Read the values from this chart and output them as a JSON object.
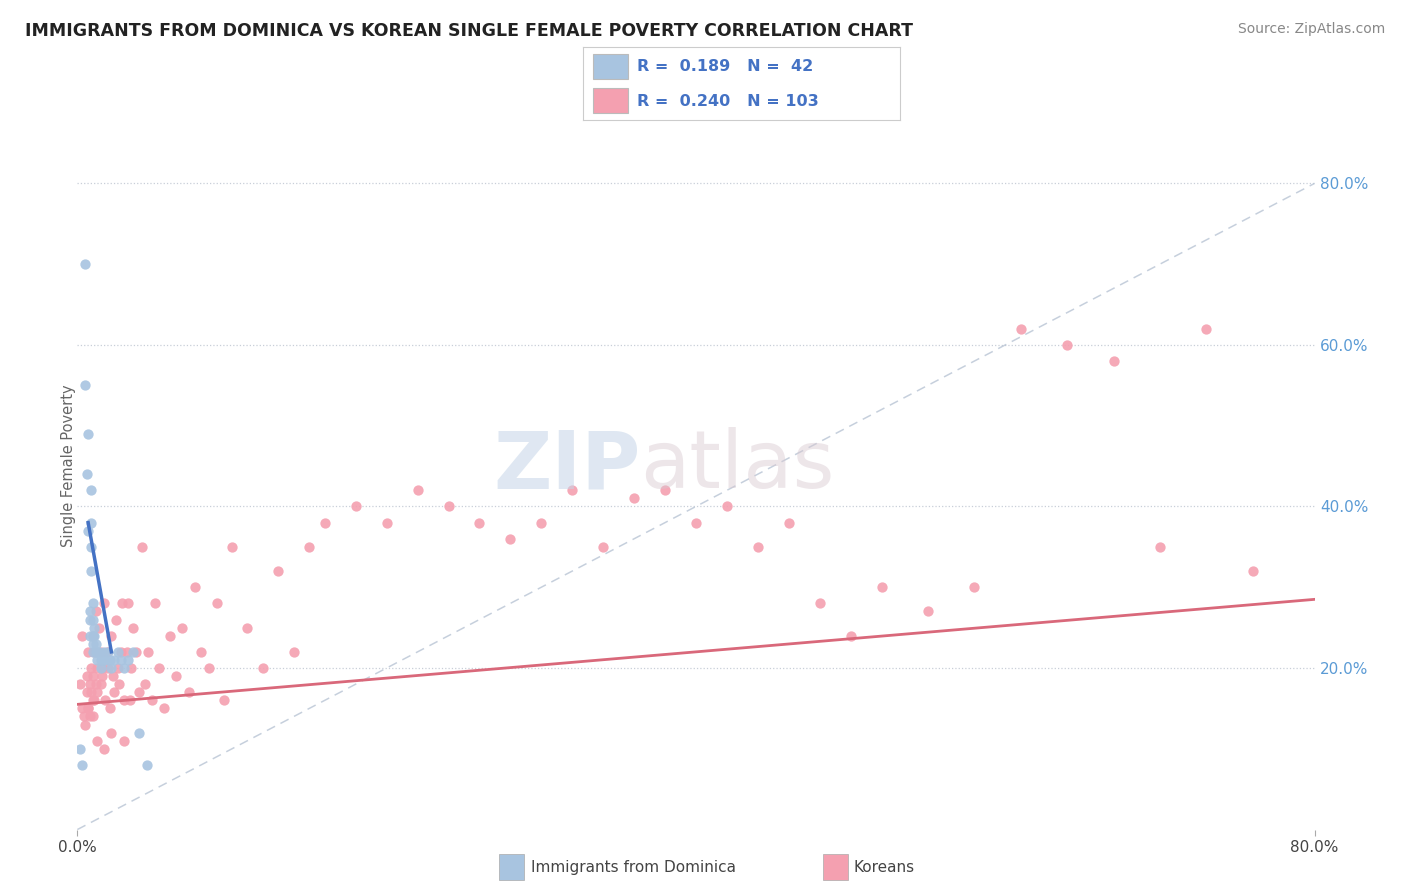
{
  "title": "IMMIGRANTS FROM DOMINICA VS KOREAN SINGLE FEMALE POVERTY CORRELATION CHART",
  "source": "Source: ZipAtlas.com",
  "ylabel": "Single Female Poverty",
  "dominica_color": "#a8c4e0",
  "korean_color": "#f4a0b0",
  "dominica_line_color": "#4472c4",
  "korean_line_color": "#d9687a",
  "ref_line_color": "#b8c4d4",
  "background_color": "#ffffff",
  "watermark_zip": "ZIP",
  "watermark_atlas": "atlas",
  "xlim": [
    0.0,
    0.8
  ],
  "ylim": [
    0.0,
    0.9
  ],
  "right_yticks": [
    0.2,
    0.4,
    0.6,
    0.8
  ],
  "right_yticklabels": [
    "20.0%",
    "40.0%",
    "60.0%",
    "80.0%"
  ],
  "xtick_labels": [
    "0.0%",
    "80.0%"
  ],
  "xtick_vals": [
    0.0,
    0.8
  ],
  "dom_x": [
    0.002,
    0.003,
    0.005,
    0.005,
    0.006,
    0.007,
    0.007,
    0.008,
    0.008,
    0.008,
    0.009,
    0.009,
    0.009,
    0.009,
    0.01,
    0.01,
    0.01,
    0.01,
    0.01,
    0.011,
    0.011,
    0.012,
    0.012,
    0.013,
    0.013,
    0.014,
    0.015,
    0.015,
    0.016,
    0.017,
    0.018,
    0.02,
    0.021,
    0.022,
    0.024,
    0.026,
    0.028,
    0.03,
    0.033,
    0.036,
    0.04,
    0.045
  ],
  "dom_y": [
    0.1,
    0.08,
    0.7,
    0.55,
    0.44,
    0.49,
    0.37,
    0.26,
    0.24,
    0.27,
    0.42,
    0.38,
    0.35,
    0.32,
    0.28,
    0.26,
    0.24,
    0.23,
    0.22,
    0.25,
    0.24,
    0.23,
    0.22,
    0.22,
    0.21,
    0.22,
    0.2,
    0.21,
    0.21,
    0.22,
    0.21,
    0.22,
    0.21,
    0.2,
    0.21,
    0.22,
    0.21,
    0.2,
    0.21,
    0.22,
    0.12,
    0.08
  ],
  "kor_x": [
    0.002,
    0.003,
    0.004,
    0.005,
    0.006,
    0.006,
    0.007,
    0.007,
    0.008,
    0.008,
    0.009,
    0.009,
    0.01,
    0.01,
    0.01,
    0.011,
    0.011,
    0.012,
    0.012,
    0.013,
    0.013,
    0.014,
    0.015,
    0.015,
    0.016,
    0.016,
    0.017,
    0.018,
    0.019,
    0.02,
    0.021,
    0.022,
    0.023,
    0.024,
    0.025,
    0.026,
    0.027,
    0.028,
    0.029,
    0.03,
    0.032,
    0.033,
    0.034,
    0.035,
    0.036,
    0.038,
    0.04,
    0.042,
    0.044,
    0.046,
    0.048,
    0.05,
    0.053,
    0.056,
    0.06,
    0.064,
    0.068,
    0.072,
    0.076,
    0.08,
    0.085,
    0.09,
    0.095,
    0.1,
    0.11,
    0.12,
    0.13,
    0.14,
    0.15,
    0.16,
    0.18,
    0.2,
    0.22,
    0.24,
    0.26,
    0.28,
    0.3,
    0.32,
    0.34,
    0.36,
    0.38,
    0.4,
    0.42,
    0.44,
    0.46,
    0.48,
    0.5,
    0.52,
    0.55,
    0.58,
    0.61,
    0.64,
    0.67,
    0.7,
    0.73,
    0.76,
    0.003,
    0.007,
    0.01,
    0.013,
    0.017,
    0.022,
    0.03
  ],
  "kor_y": [
    0.18,
    0.15,
    0.14,
    0.13,
    0.17,
    0.19,
    0.15,
    0.22,
    0.14,
    0.18,
    0.17,
    0.2,
    0.16,
    0.19,
    0.24,
    0.16,
    0.22,
    0.18,
    0.27,
    0.2,
    0.17,
    0.25,
    0.18,
    0.22,
    0.2,
    0.19,
    0.28,
    0.16,
    0.22,
    0.2,
    0.15,
    0.24,
    0.19,
    0.17,
    0.26,
    0.2,
    0.18,
    0.22,
    0.28,
    0.16,
    0.22,
    0.28,
    0.16,
    0.2,
    0.25,
    0.22,
    0.17,
    0.35,
    0.18,
    0.22,
    0.16,
    0.28,
    0.2,
    0.15,
    0.24,
    0.19,
    0.25,
    0.17,
    0.3,
    0.22,
    0.2,
    0.28,
    0.16,
    0.35,
    0.25,
    0.2,
    0.32,
    0.22,
    0.35,
    0.38,
    0.4,
    0.38,
    0.42,
    0.4,
    0.38,
    0.36,
    0.38,
    0.42,
    0.35,
    0.41,
    0.42,
    0.38,
    0.4,
    0.35,
    0.38,
    0.28,
    0.24,
    0.3,
    0.27,
    0.3,
    0.62,
    0.6,
    0.58,
    0.35,
    0.62,
    0.32,
    0.24,
    0.15,
    0.14,
    0.11,
    0.1,
    0.12,
    0.11
  ]
}
